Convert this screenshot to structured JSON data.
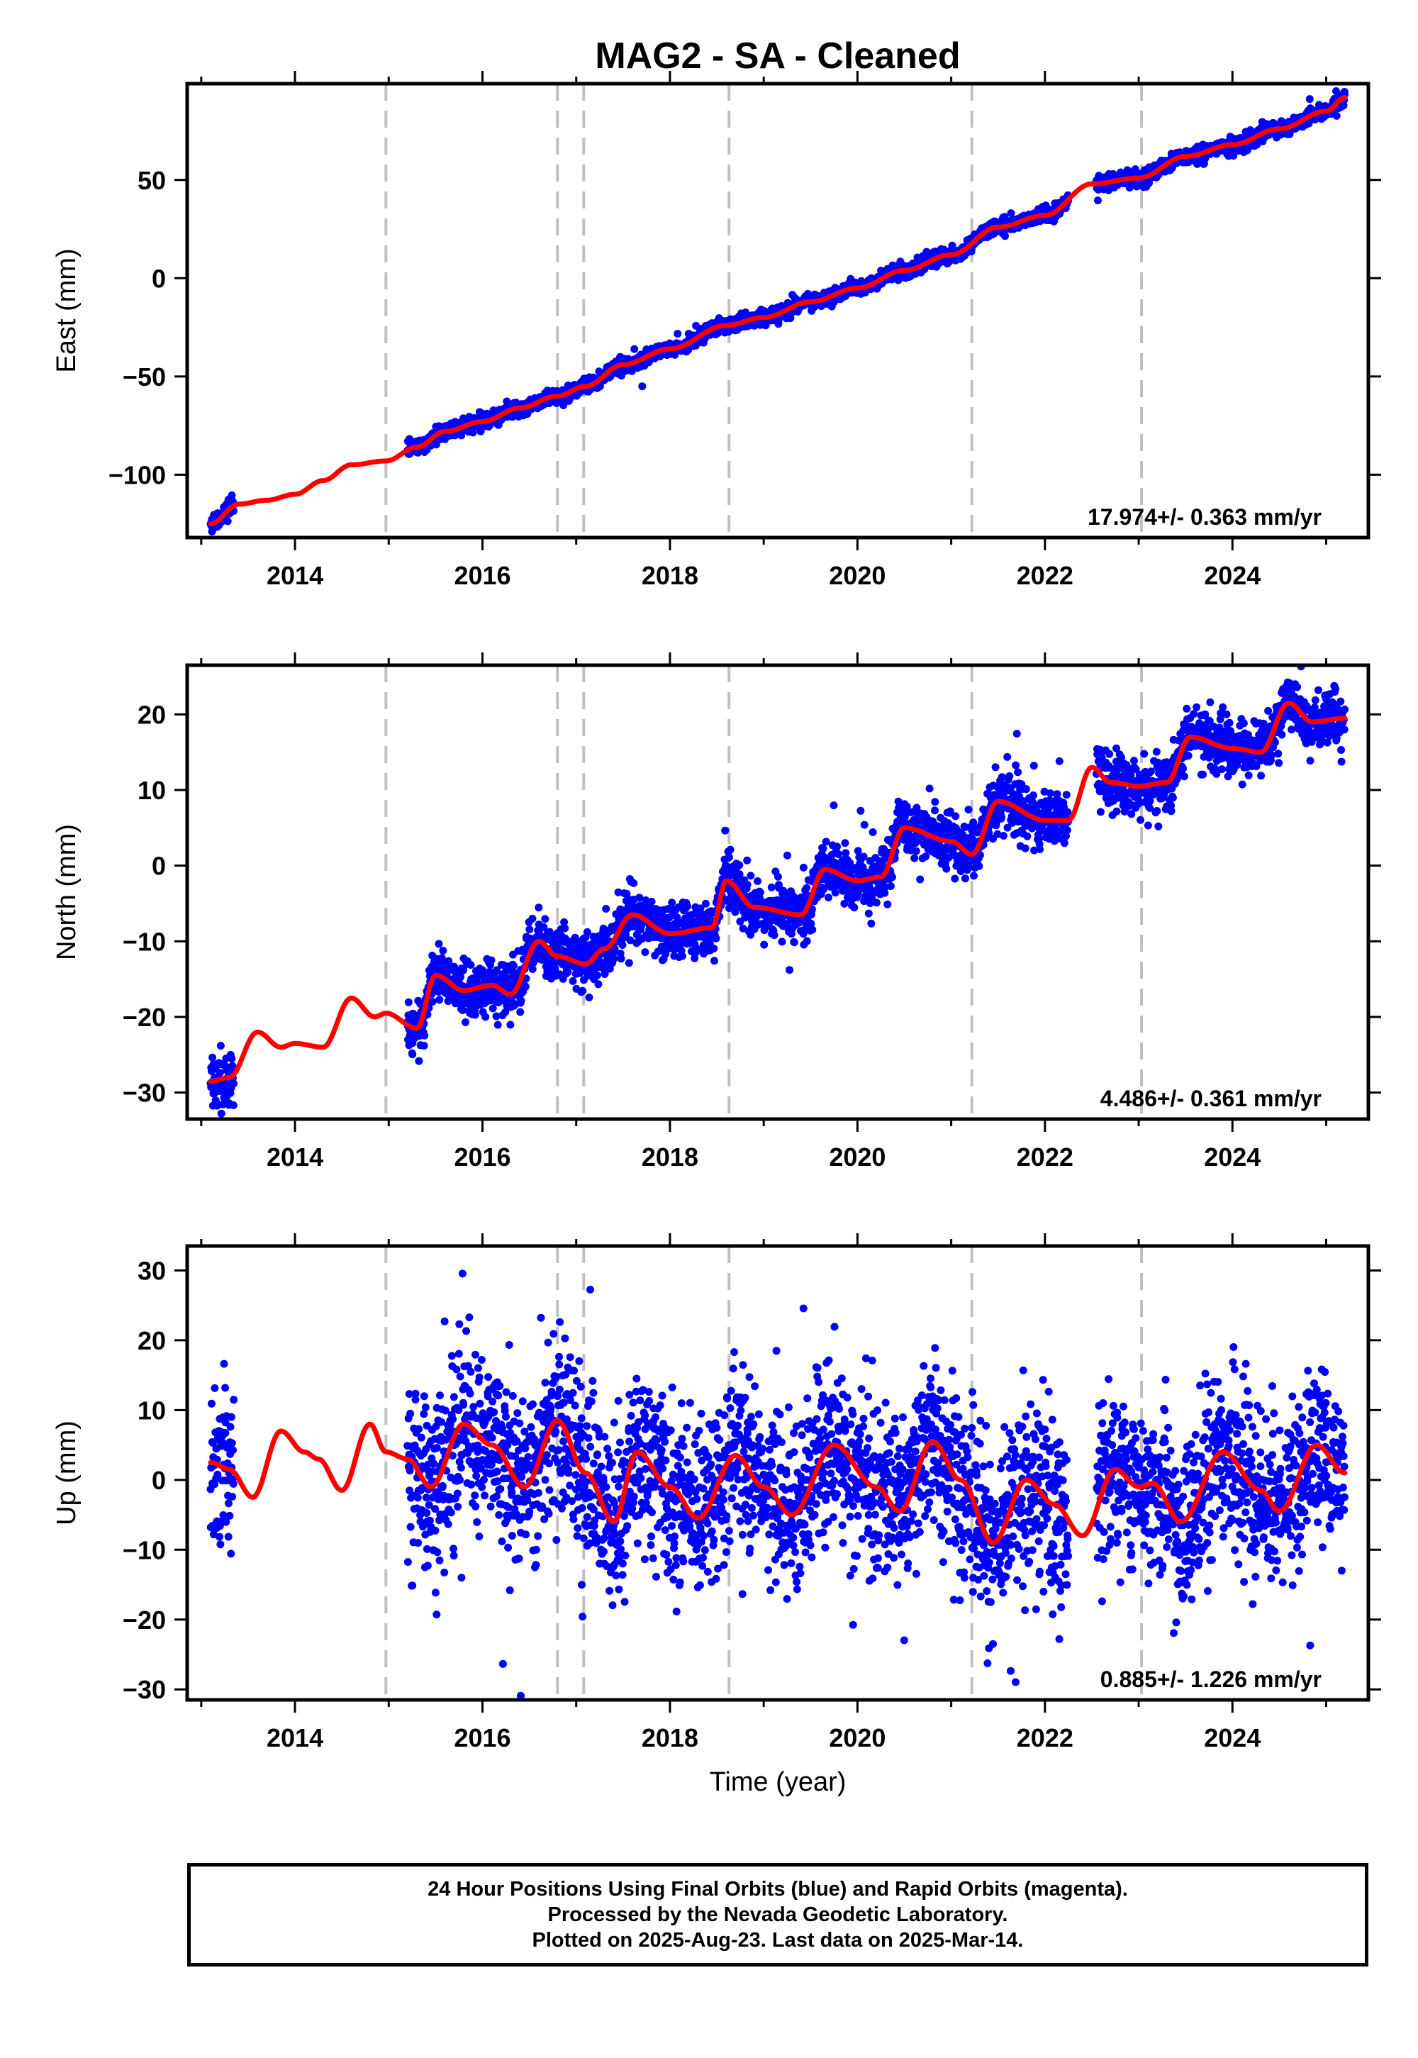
{
  "title": "MAG2  - SA - Cleaned",
  "colors": {
    "data": "#0000ff",
    "model": "#ff0000",
    "offsets": "#c0c0c0",
    "frame": "#000000"
  },
  "chart_data": [
    {
      "type": "scatter",
      "component": "east",
      "ylabel": "East (mm)",
      "xlabel": "",
      "xlim": [
        2012.85,
        2025.45
      ],
      "ylim": [
        -132,
        99
      ],
      "xticks": [
        2014,
        2016,
        2018,
        2020,
        2022,
        2024
      ],
      "xtick_labels": [
        "2014",
        "2016",
        "2018",
        "2020",
        "2022",
        "2024"
      ],
      "yticks": [
        -100,
        -50,
        0,
        50
      ],
      "ytick_labels": [
        "−100",
        "−50",
        "0",
        "50"
      ],
      "rate_label": "17.974+/- 0.363 mm/yr",
      "offset_lines": [
        2014.97,
        2016.8,
        2017.08,
        2018.63,
        2021.22,
        2023.03
      ],
      "data_segments": [
        [
          2013.1,
          2013.35
        ],
        [
          2015.2,
          2022.25
        ],
        [
          2022.55,
          2025.2
        ]
      ],
      "scatter_sigma": 1.8,
      "model_x": [
        2013.1,
        2013.4,
        2013.7,
        2014.0,
        2014.3,
        2014.6,
        2014.97,
        2015.3,
        2015.6,
        2016.0,
        2016.4,
        2016.8,
        2017.1,
        2017.5,
        2018.0,
        2018.6,
        2019.0,
        2019.5,
        2020.0,
        2020.5,
        2021.0,
        2021.5,
        2022.0,
        2022.5,
        2023.0,
        2023.5,
        2024.0,
        2024.5,
        2025.0,
        2025.2
      ],
      "model_y": [
        -125,
        -115,
        -113,
        -110,
        -103,
        -95,
        -93,
        -86,
        -78,
        -73,
        -66,
        -60,
        -55,
        -44,
        -36,
        -24,
        -20,
        -12,
        -5,
        4,
        12,
        26,
        32,
        48,
        51,
        62,
        68,
        76,
        85,
        92
      ],
      "series": [
        {
          "name": "",
          "description_color": "blue",
          "kind": "24h positions"
        },
        {
          "name": "",
          "description_color": "red",
          "kind": "model"
        }
      ]
    },
    {
      "type": "scatter",
      "component": "north",
      "ylabel": "North (mm)",
      "xlabel": "",
      "xlim": [
        2012.85,
        2025.45
      ],
      "ylim": [
        -33.5,
        26.5
      ],
      "xticks": [
        2014,
        2016,
        2018,
        2020,
        2022,
        2024
      ],
      "xtick_labels": [
        "2014",
        "2016",
        "2018",
        "2020",
        "2022",
        "2024"
      ],
      "yticks": [
        -30,
        -20,
        -10,
        0,
        10,
        20
      ],
      "ytick_labels": [
        "−30",
        "−20",
        "−10",
        "0",
        "10",
        "20"
      ],
      "rate_label": "4.486+/- 0.361 mm/yr",
      "offset_lines": [
        2014.97,
        2016.8,
        2017.08,
        2018.63,
        2021.22,
        2023.03
      ],
      "data_segments": [
        [
          2013.1,
          2013.35
        ],
        [
          2015.2,
          2022.25
        ],
        [
          2022.55,
          2025.2
        ]
      ],
      "scatter_sigma": 1.8,
      "model_x": [
        2013.1,
        2013.3,
        2013.6,
        2013.85,
        2014.0,
        2014.3,
        2014.6,
        2014.85,
        2014.97,
        2015.3,
        2015.5,
        2015.8,
        2016.1,
        2016.3,
        2016.6,
        2016.8,
        2017.1,
        2017.3,
        2017.6,
        2018.0,
        2018.45,
        2018.6,
        2018.9,
        2019.4,
        2019.65,
        2020.0,
        2020.25,
        2020.5,
        2021.0,
        2021.22,
        2021.5,
        2022.0,
        2022.25,
        2022.5,
        2022.7,
        2023.0,
        2023.3,
        2023.55,
        2024.0,
        2024.3,
        2024.6,
        2024.85,
        2025.2
      ],
      "model_y": [
        -28.5,
        -28,
        -22,
        -24,
        -23.5,
        -24,
        -17.5,
        -20,
        -19.5,
        -21.5,
        -14.5,
        -16.5,
        -15.8,
        -17,
        -10,
        -12,
        -13,
        -11,
        -6.5,
        -9,
        -8.2,
        -2,
        -5.5,
        -6.5,
        -0.5,
        -2,
        -1.5,
        5,
        3.2,
        1.5,
        8.5,
        6,
        6,
        13,
        11,
        10.5,
        11,
        17,
        15.5,
        15,
        21.5,
        19,
        19.5
      ],
      "series": [
        {
          "name": "",
          "description_color": "blue",
          "kind": "24h positions"
        },
        {
          "name": "",
          "description_color": "red",
          "kind": "model"
        }
      ]
    },
    {
      "type": "scatter",
      "component": "up",
      "ylabel": "Up (mm)",
      "xlabel": "Time (year)",
      "xlim": [
        2012.85,
        2025.45
      ],
      "ylim": [
        -31.5,
        33.5
      ],
      "xticks": [
        2014,
        2016,
        2018,
        2020,
        2022,
        2024
      ],
      "xtick_labels": [
        "2014",
        "2016",
        "2018",
        "2020",
        "2022",
        "2024"
      ],
      "yticks": [
        -30,
        -20,
        -10,
        0,
        10,
        20,
        30
      ],
      "ytick_labels": [
        "−30",
        "−20",
        "−10",
        "0",
        "10",
        "20",
        "30"
      ],
      "rate_label": "0.885+/- 1.226 mm/yr",
      "offset_lines": [
        2014.97,
        2016.8,
        2017.08,
        2018.63,
        2021.22,
        2023.03
      ],
      "data_segments": [
        [
          2013.1,
          2013.35
        ],
        [
          2015.2,
          2022.25
        ],
        [
          2022.55,
          2025.2
        ]
      ],
      "scatter_sigma": 6.2,
      "model_x": [
        2013.1,
        2013.3,
        2013.55,
        2013.85,
        2014.1,
        2014.25,
        2014.5,
        2014.8,
        2014.97,
        2015.2,
        2015.45,
        2015.8,
        2016.1,
        2016.45,
        2016.8,
        2017.1,
        2017.4,
        2017.65,
        2018.0,
        2018.3,
        2018.7,
        2019.0,
        2019.3,
        2019.75,
        2020.2,
        2020.45,
        2020.8,
        2021.1,
        2021.45,
        2021.8,
        2022.1,
        2022.4,
        2022.75,
        2023.0,
        2023.15,
        2023.45,
        2023.9,
        2024.3,
        2024.5,
        2024.9,
        2025.2
      ],
      "model_y": [
        2.5,
        1.5,
        -2.5,
        7,
        4,
        3,
        -1.5,
        8,
        4,
        3,
        -1,
        8,
        5,
        -1,
        8.5,
        1,
        -6,
        4,
        -1,
        -5.5,
        3.5,
        -1,
        -5,
        5,
        -1,
        -4.5,
        5.5,
        0,
        -9,
        0,
        -3.5,
        -8,
        1.5,
        -1,
        -0.5,
        -6,
        4,
        -1.5,
        -4.5,
        5,
        1
      ],
      "series": [
        {
          "name": "",
          "description_color": "blue",
          "kind": "24h positions"
        },
        {
          "name": "",
          "description_color": "red",
          "kind": "model"
        }
      ]
    }
  ],
  "footer": {
    "line1": "24 Hour Positions Using Final Orbits (blue) and Rapid Orbits (magenta).",
    "line2": "Processed by the Nevada Geodetic Laboratory.",
    "line3": "Plotted on 2025-Aug-23. Last data on 2025-Mar-14."
  }
}
